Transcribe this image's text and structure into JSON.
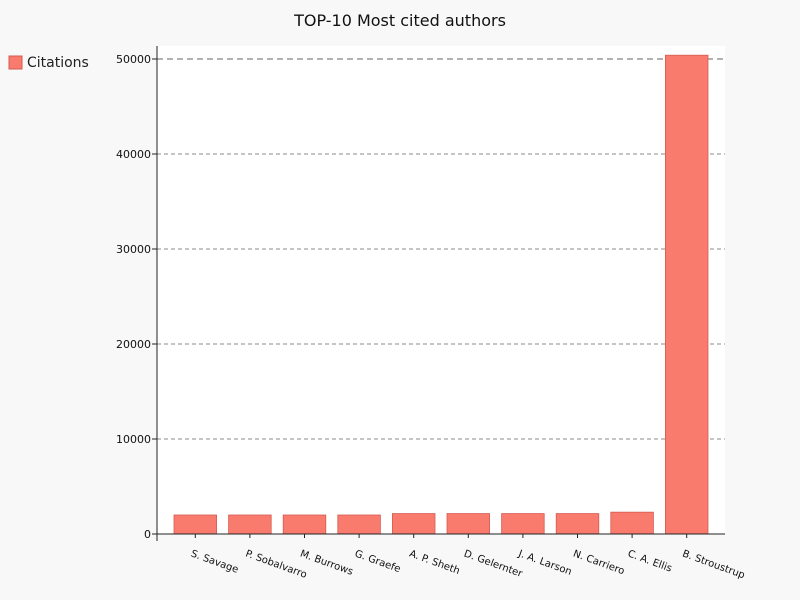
{
  "chart_data": {
    "type": "bar",
    "title": "TOP-10 Most cited authors",
    "xlabel": "",
    "ylabel": "",
    "categories": [
      "S. Savage",
      "P. Sobalvarro",
      "M. Burrows",
      "G. Graefe",
      "A. P. Sheth",
      "D. Gelernter",
      "J. A. Larson",
      "N. Carriero",
      "C. A. Ellis",
      "B. Stroustrup"
    ],
    "series": [
      {
        "name": "Citations",
        "values": [
          2000,
          2000,
          2000,
          2000,
          2150,
          2150,
          2150,
          2150,
          2300,
          50400
        ]
      }
    ],
    "ylim": [
      0,
      51500
    ],
    "yticks": [
      0,
      10000,
      20000,
      30000,
      40000,
      50000
    ],
    "grid": true,
    "legend_position": "left-top",
    "colors": {
      "bar_fill": "#f87b6e",
      "bar_stroke": "#d65a4f",
      "grid": "#666666",
      "background": "#f8f8f8",
      "plot_background": "#ffffff"
    }
  }
}
